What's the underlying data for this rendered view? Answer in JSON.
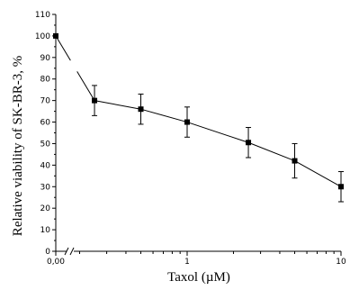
{
  "chart_data": {
    "type": "line",
    "title": "",
    "xlabel": "Taxol (µM)",
    "ylabel": "Relative viability of SK-BR-3, %",
    "x_scale": "log",
    "x_axis_break": true,
    "x_ticks": [
      {
        "value": 0,
        "label": "0,00"
      },
      {
        "value": 1,
        "label": "1"
      },
      {
        "value": 10,
        "label": "10"
      }
    ],
    "ylim": [
      0,
      110
    ],
    "y_ticks": [
      0,
      10,
      20,
      30,
      40,
      50,
      60,
      70,
      80,
      90,
      100,
      110
    ],
    "grid": false,
    "series": [
      {
        "marker": "square",
        "color": "#000000",
        "points": [
          {
            "x": 0,
            "y": 100,
            "err": 0
          },
          {
            "x": 0.25,
            "y": 70,
            "err": 7
          },
          {
            "x": 0.5,
            "y": 66,
            "err": 7
          },
          {
            "x": 1,
            "y": 60,
            "err": 7
          },
          {
            "x": 2.5,
            "y": 50.5,
            "err": 7
          },
          {
            "x": 5,
            "y": 42,
            "err": 8
          },
          {
            "x": 10,
            "y": 30,
            "err": 7
          }
        ]
      }
    ]
  }
}
